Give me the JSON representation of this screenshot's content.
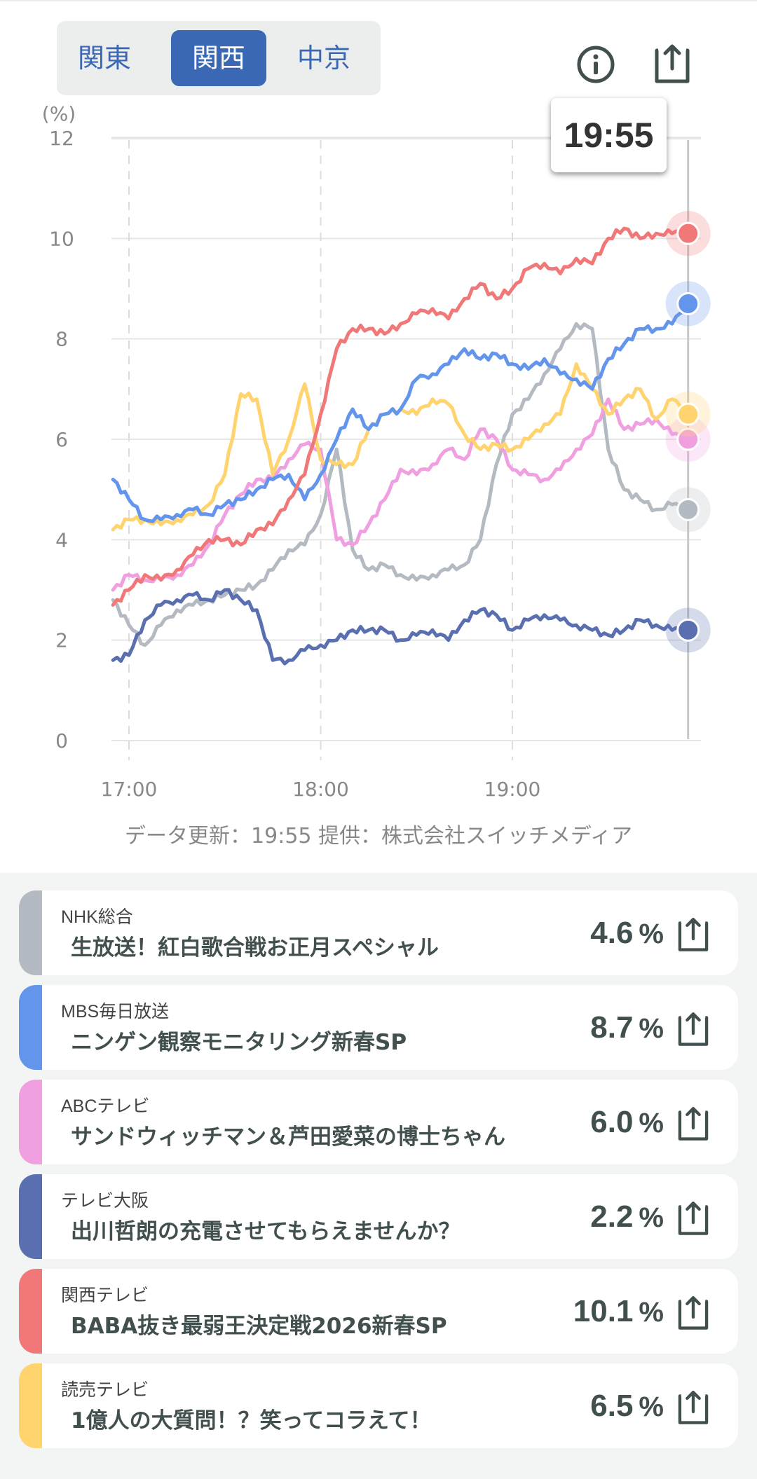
{
  "regions": [
    {
      "label": "関東",
      "active": false
    },
    {
      "label": "関西",
      "active": true
    },
    {
      "label": "中京",
      "active": false
    }
  ],
  "header": {
    "info_icon": "info-icon",
    "share_icon": "share-icon"
  },
  "tooltip": {
    "time": "19:55"
  },
  "chart_data": {
    "type": "line",
    "ylabel": "(%)",
    "ylim": [
      0,
      12
    ],
    "yticks": [
      0,
      2,
      4,
      6,
      8,
      10,
      12
    ],
    "xlim_minutes": [
      -5,
      175
    ],
    "xticks": [
      {
        "label": "17:00",
        "minute": 0
      },
      {
        "label": "18:00",
        "minute": 60
      },
      {
        "label": "19:00",
        "minute": 120
      }
    ],
    "x_minutes_start": -5,
    "x_step_minutes": 5,
    "cursor_minute": 175,
    "series": [
      {
        "name": "NHK総合",
        "color": "#b4bac2",
        "values": [
          2.8,
          2.3,
          1.9,
          2.3,
          2.6,
          2.7,
          2.8,
          2.9,
          3.0,
          3.1,
          3.4,
          3.8,
          3.9,
          4.5,
          5.8,
          3.8,
          3.4,
          3.5,
          3.3,
          3.2,
          3.3,
          3.4,
          3.5,
          4.0,
          5.5,
          6.5,
          6.8,
          7.3,
          7.8,
          8.3,
          8.2,
          5.8,
          5.0,
          4.8,
          4.6,
          4.7,
          4.6
        ]
      },
      {
        "name": "MBS毎日放送",
        "color": "#6495ed",
        "values": [
          5.2,
          4.8,
          4.4,
          4.4,
          4.5,
          4.6,
          4.5,
          4.7,
          4.8,
          5.0,
          5.2,
          5.3,
          4.8,
          5.3,
          6.0,
          6.6,
          6.2,
          6.5,
          6.6,
          7.2,
          7.3,
          7.5,
          7.8,
          7.6,
          7.7,
          7.5,
          7.4,
          7.6,
          7.3,
          7.2,
          7.0,
          7.6,
          7.9,
          8.2,
          8.2,
          8.3,
          8.7
        ]
      },
      {
        "name": "ABCテレビ",
        "color": "#f0a0e0",
        "values": [
          3.0,
          3.3,
          3.2,
          3.2,
          3.3,
          3.5,
          3.9,
          4.5,
          4.9,
          5.2,
          5.2,
          5.6,
          5.9,
          5.8,
          4.0,
          3.9,
          4.3,
          4.8,
          5.4,
          5.3,
          5.5,
          5.8,
          5.6,
          6.2,
          6.0,
          5.4,
          5.3,
          5.2,
          5.4,
          5.8,
          6.1,
          6.8,
          6.2,
          6.3,
          6.4,
          6.1,
          6.0
        ]
      },
      {
        "name": "テレビ大阪",
        "color": "#5a6fb0",
        "values": [
          1.6,
          1.7,
          2.4,
          2.7,
          2.8,
          2.9,
          2.8,
          3.0,
          2.8,
          2.6,
          1.6,
          1.6,
          1.8,
          1.9,
          2.0,
          2.2,
          2.2,
          2.2,
          2.0,
          2.1,
          2.2,
          2.0,
          2.4,
          2.6,
          2.5,
          2.2,
          2.4,
          2.5,
          2.4,
          2.3,
          2.2,
          2.1,
          2.2,
          2.4,
          2.3,
          2.2,
          2.2
        ]
      },
      {
        "name": "関西テレビ",
        "color": "#f07878",
        "values": [
          2.7,
          3.0,
          3.3,
          3.2,
          3.4,
          3.7,
          4.0,
          4.0,
          3.9,
          4.2,
          4.3,
          4.8,
          5.3,
          6.5,
          7.8,
          8.2,
          8.2,
          8.1,
          8.3,
          8.5,
          8.6,
          8.4,
          8.8,
          9.1,
          8.8,
          9.0,
          9.4,
          9.5,
          9.3,
          9.6,
          9.5,
          10.0,
          10.2,
          10.0,
          10.1,
          10.1,
          10.1
        ]
      },
      {
        "name": "読売テレビ",
        "color": "#ffd36e",
        "values": [
          4.2,
          4.4,
          4.4,
          4.3,
          4.4,
          4.5,
          4.7,
          5.3,
          6.9,
          6.8,
          5.3,
          6.0,
          7.1,
          5.6,
          5.5,
          5.5,
          6.2,
          6.5,
          6.6,
          6.5,
          6.8,
          6.7,
          6.1,
          5.8,
          5.9,
          5.8,
          6.0,
          6.3,
          6.5,
          7.5,
          7.0,
          6.5,
          6.8,
          7.0,
          6.4,
          6.8,
          6.5
        ]
      }
    ]
  },
  "footer": {
    "note": "データ更新：19:55 提供：株式会社スイッチメディア"
  },
  "programs": [
    {
      "channel": "NHK総合",
      "title": "生放送！紅白歌合戦お正月スペシャル",
      "rating": "4.6",
      "unit": "%",
      "color": "#b4bac2"
    },
    {
      "channel": "MBS毎日放送",
      "title": "ニンゲン観察モニタリング新春SP",
      "rating": "8.7",
      "unit": "%",
      "color": "#6495ed"
    },
    {
      "channel": "ABCテレビ",
      "title": "サンドウィッチマン＆芦田愛菜の博士ちゃん",
      "rating": "6.0",
      "unit": "%",
      "color": "#f0a0e0"
    },
    {
      "channel": "テレビ大阪",
      "title": "出川哲朗の充電させてもらえませんか？",
      "rating": "2.2",
      "unit": "%",
      "color": "#5a6fb0"
    },
    {
      "channel": "関西テレビ",
      "title": "BABA抜き最弱王決定戦2026新春SP",
      "rating": "10.1",
      "unit": "%",
      "color": "#f07878"
    },
    {
      "channel": "読売テレビ",
      "title": "1億人の大質問！？笑ってコラえて！",
      "rating": "6.5",
      "unit": "%",
      "color": "#ffd36e"
    }
  ]
}
